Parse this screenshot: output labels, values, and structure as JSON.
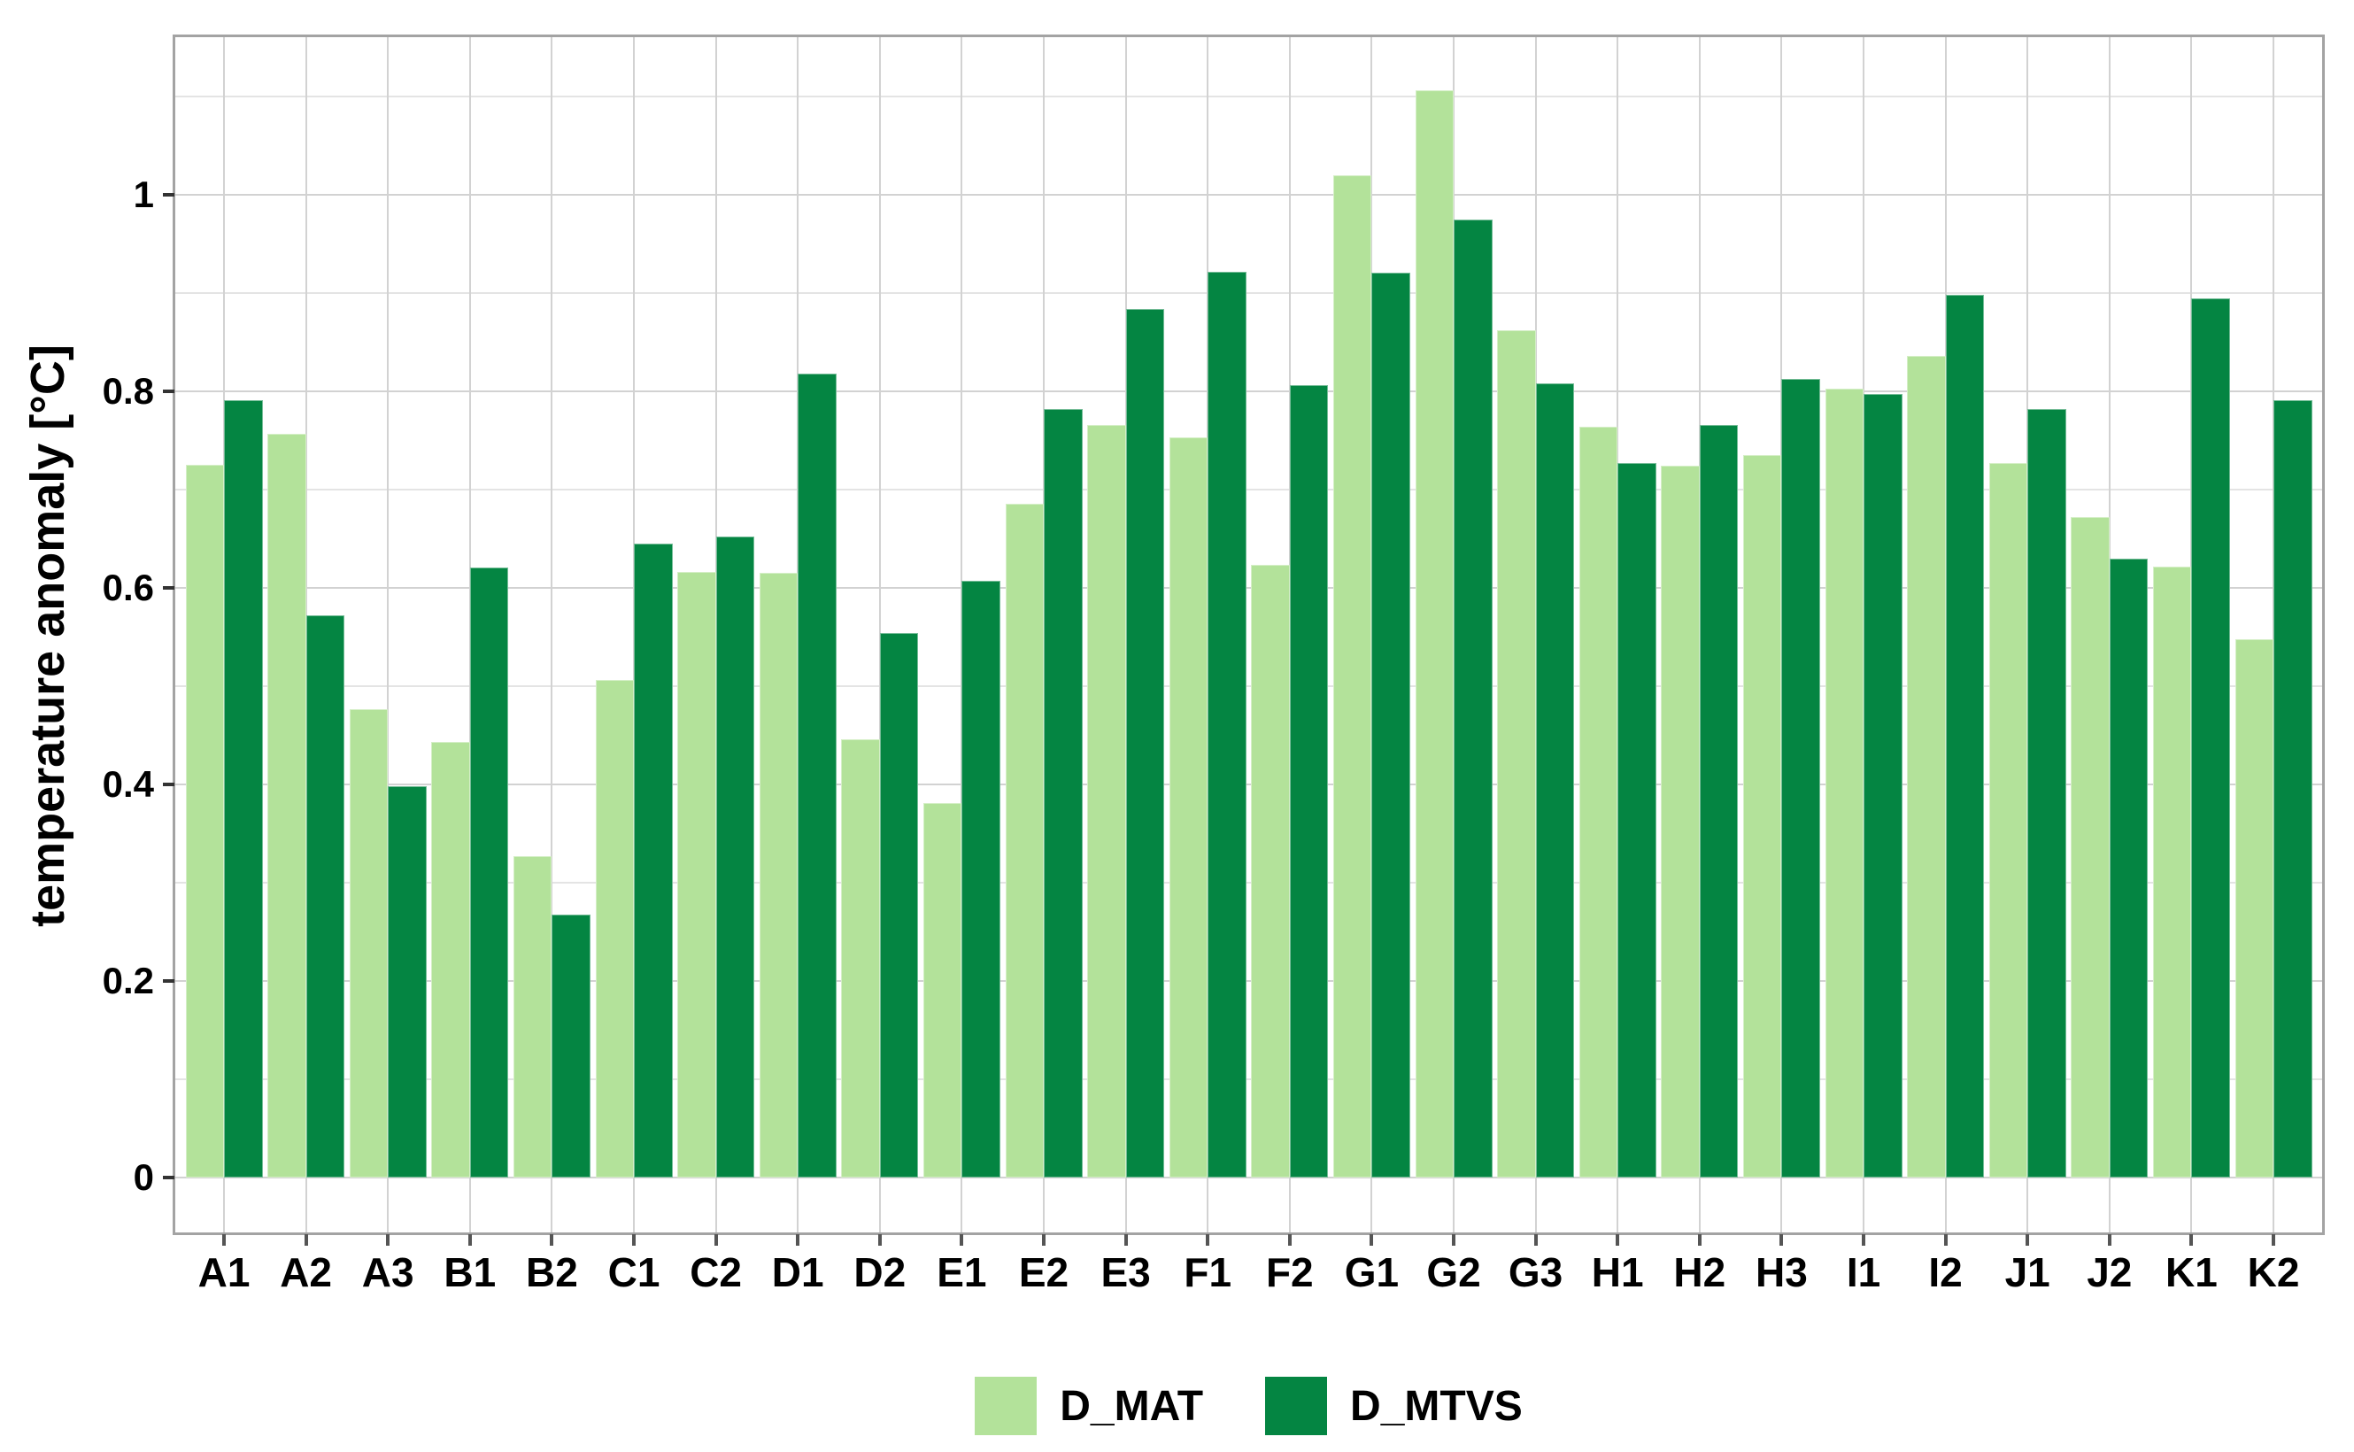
{
  "chart_data": {
    "type": "bar",
    "title": "",
    "xlabel": "",
    "ylabel": "temperature anomaly [°C]",
    "categories": [
      "A1",
      "A2",
      "A3",
      "B1",
      "B2",
      "C1",
      "C2",
      "D1",
      "D2",
      "E1",
      "E2",
      "E3",
      "F1",
      "F2",
      "G1",
      "G2",
      "G3",
      "H1",
      "H2",
      "H3",
      "I1",
      "I2",
      "J1",
      "J2",
      "K1",
      "K2"
    ],
    "series": [
      {
        "name": "D_MAT",
        "color": "#b3e29a",
        "values": [
          0.725,
          0.757,
          0.477,
          0.443,
          0.327,
          0.506,
          0.616,
          0.615,
          0.446,
          0.381,
          0.686,
          0.766,
          0.753,
          0.623,
          1.02,
          1.106,
          0.862,
          0.764,
          0.724,
          0.735,
          0.803,
          0.836,
          0.727,
          0.672,
          0.622,
          0.548
        ]
      },
      {
        "name": "D_MTVS",
        "color": "#048542",
        "values": [
          0.791,
          0.572,
          0.398,
          0.621,
          0.268,
          0.645,
          0.652,
          0.818,
          0.554,
          0.607,
          0.782,
          0.884,
          0.922,
          0.806,
          0.921,
          0.975,
          0.808,
          0.727,
          0.766,
          0.813,
          0.797,
          0.898,
          0.782,
          0.63,
          0.895,
          0.791
        ]
      }
    ],
    "y_ticks": {
      "labels": [
        "0",
        "0.2",
        "0.4",
        "0.6",
        "0.8",
        "1"
      ],
      "values": [
        0,
        0.2,
        0.4,
        0.6,
        0.8,
        1
      ]
    },
    "y_minor_ticks": [
      0.1,
      0.3,
      0.5,
      0.7,
      0.9,
      1.1
    ],
    "ylim": [
      0,
      1.16
    ],
    "grid": "horizontal major+minor, vertical major at category centers",
    "legend_position": "bottom"
  },
  "colors": {
    "background": "#ffffff",
    "panel_border": "#a3a3a3",
    "grid_major": "#d2d2d2",
    "grid_minor": "#e4e4e4",
    "text": "#000000"
  }
}
